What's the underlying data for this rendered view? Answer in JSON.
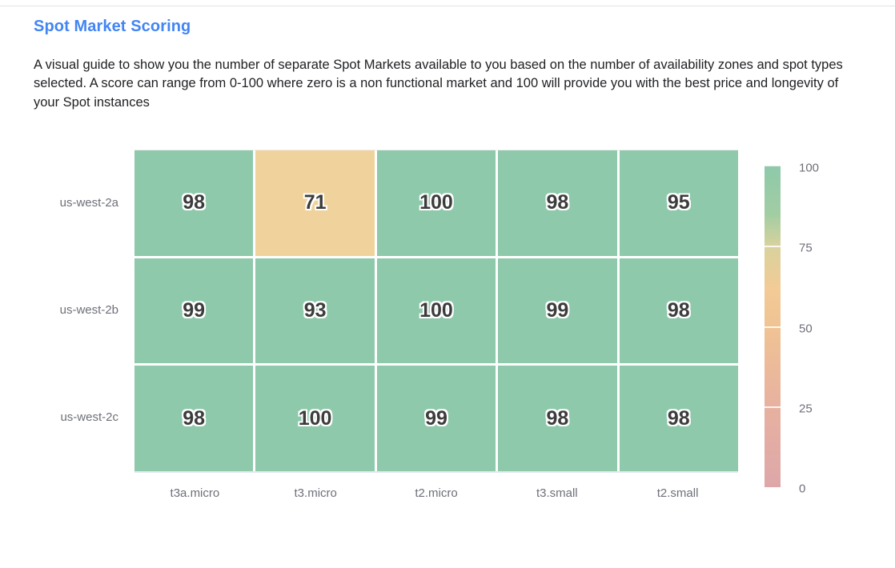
{
  "page": {
    "title": "Spot Market Scoring",
    "description": "A visual guide to show you the number of separate Spot Markets available to you based on the number of availability zones and spot types selected. A score can range from 0-100 where zero is a non functional market and 100 will provide you with the best price and longevity of your Spot instances"
  },
  "theme": {
    "title_color": "#4285f4",
    "text_color": "#202124",
    "axis_label_color": "#6e7079",
    "cell_text_color": "#3c3c3c",
    "divider_color": "#e3e3e3",
    "cell_high_color": "#8dc9aa",
    "cell_low_color": "#f0d39c"
  },
  "chart_data": {
    "type": "heatmap",
    "title": "Spot Market Scoring",
    "rows": [
      "us-west-2a",
      "us-west-2b",
      "us-west-2c"
    ],
    "columns": [
      "t3a.micro",
      "t3.micro",
      "t2.micro",
      "t3.small",
      "t2.small"
    ],
    "values": [
      [
        98,
        71,
        100,
        98,
        95
      ],
      [
        99,
        93,
        100,
        99,
        98
      ],
      [
        98,
        100,
        99,
        98,
        98
      ]
    ],
    "value_range": [
      0,
      100
    ],
    "high_threshold": 75,
    "colorbar": {
      "ticks": [
        100,
        75,
        50,
        25,
        0
      ],
      "tick_lines": [
        75,
        50,
        25
      ],
      "gradient": [
        {
          "value": 100,
          "color": "#8dc9aa"
        },
        {
          "value": 85,
          "color": "#a2cda3"
        },
        {
          "value": 75,
          "color": "#d9d29d"
        },
        {
          "value": 62,
          "color": "#f2cb96"
        },
        {
          "value": 50,
          "color": "#f0c393"
        },
        {
          "value": 25,
          "color": "#e7b1a0"
        },
        {
          "value": 0,
          "color": "#dda7a9"
        }
      ]
    }
  }
}
